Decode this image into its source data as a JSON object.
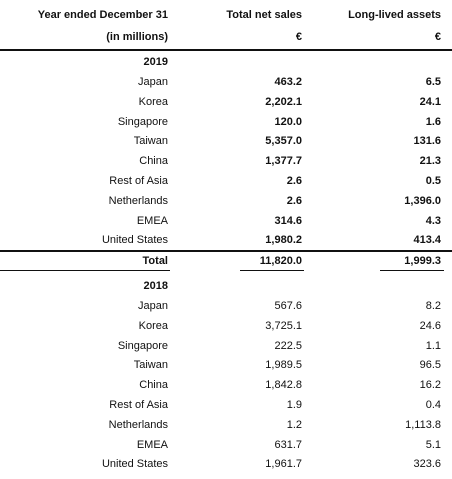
{
  "header": {
    "col1": [
      "Year ended December 31",
      "(in millions)"
    ],
    "col2": [
      "Total net sales",
      "€"
    ],
    "col3": [
      "Long-lived assets",
      "€"
    ]
  },
  "sections": [
    {
      "year": "2019",
      "rows": [
        [
          "Japan",
          "463.2",
          "6.5"
        ],
        [
          "Korea",
          "2,202.1",
          "24.1"
        ],
        [
          "Singapore",
          "120.0",
          "1.6"
        ],
        [
          "Taiwan",
          "5,357.0",
          "131.6"
        ],
        [
          "China",
          "1,377.7",
          "21.3"
        ],
        [
          "Rest of Asia",
          "2.6",
          "0.5"
        ],
        [
          "Netherlands",
          "2.6",
          "1,396.0"
        ],
        [
          "EMEA",
          "314.6",
          "4.3"
        ],
        [
          "United States",
          "1,980.2",
          "413.4"
        ]
      ],
      "total": [
        "Total",
        "11,820.0",
        "1,999.3"
      ]
    },
    {
      "year": "2018",
      "rows": [
        [
          "Japan",
          "567.6",
          "8.2"
        ],
        [
          "Korea",
          "3,725.1",
          "24.6"
        ],
        [
          "Singapore",
          "222.5",
          "1.1"
        ],
        [
          "Taiwan",
          "1,989.5",
          "96.5"
        ],
        [
          "China",
          "1,842.8",
          "16.2"
        ],
        [
          "Rest of Asia",
          "1.9",
          "0.4"
        ],
        [
          "Netherlands",
          "1.2",
          "1,113.8"
        ],
        [
          "EMEA",
          "631.7",
          "5.1"
        ],
        [
          "United States",
          "1,961.7",
          "323.6"
        ]
      ]
    }
  ]
}
